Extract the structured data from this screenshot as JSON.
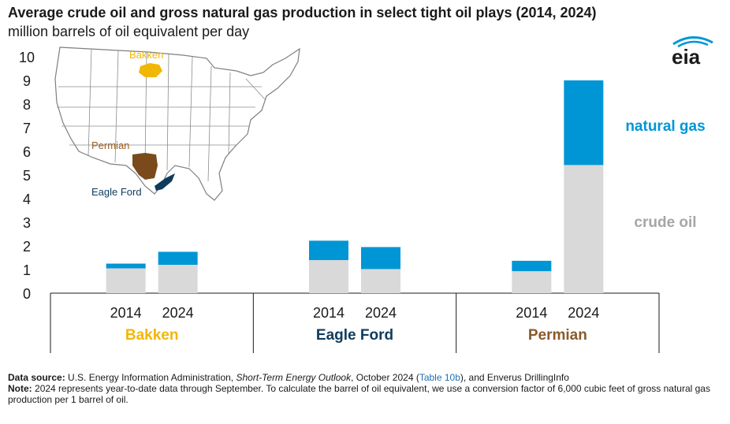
{
  "title": "Average crude oil and gross natural gas production in select tight oil plays (2014, 2024)",
  "subtitle": "million barrels of oil equivalent per day",
  "logo_text": "eia",
  "chart_data": {
    "type": "bar",
    "stacked": true,
    "ylim": [
      0,
      10
    ],
    "yticks": [
      0,
      1,
      2,
      3,
      4,
      5,
      6,
      7,
      8,
      9,
      10
    ],
    "groups": [
      {
        "name": "Bakken",
        "color": "#f2b705",
        "years": [
          "2014",
          "2024"
        ]
      },
      {
        "name": "Eagle Ford",
        "color": "#0f3b5c",
        "years": [
          "2014",
          "2024"
        ]
      },
      {
        "name": "Permian",
        "color": "#8a5a2b",
        "years": [
          "2014",
          "2024"
        ]
      }
    ],
    "series": [
      {
        "name": "crude oil",
        "color": "#d9d9d9",
        "values": [
          [
            1.05,
            1.2
          ],
          [
            1.4,
            1.02
          ],
          [
            0.93,
            5.42
          ]
        ]
      },
      {
        "name": "natural gas",
        "color": "#0096d6",
        "values": [
          [
            0.2,
            0.55
          ],
          [
            0.82,
            0.93
          ],
          [
            0.44,
            3.58
          ]
        ]
      }
    ],
    "series_label_colors": {
      "natural gas": "#0096d6",
      "crude oil": "#a6a6a6"
    },
    "grid": false
  },
  "map": {
    "labels": {
      "bakken": "Bakken",
      "permian": "Permian",
      "eagle_ford": "Eagle Ford"
    },
    "colors": {
      "bakken": "#f2b705",
      "permian": "#7a4a1c",
      "eagle_ford": "#0f3b5c",
      "states": "#ffffff",
      "border": "#7f7f7f"
    }
  },
  "footer": {
    "source_label": "Data source:",
    "source_text_1": "U.S. Energy Information Administration,",
    "source_italic": "Short-Term Energy Outlook",
    "source_text_2": ", October 2024 (",
    "source_link": "Table 10b",
    "source_text_3": "), and Enverus DrillingInfo",
    "note_label": "Note:",
    "note_text": "2024 represents year-to-date data through September. To calculate the barrel of oil equivalent, we use a conversion factor of 6,000 cubic feet of gross natural gas production per 1 barrel of oil."
  }
}
